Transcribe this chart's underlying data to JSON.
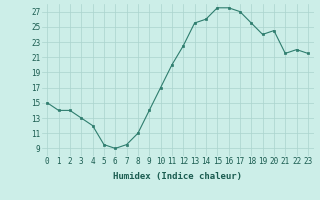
{
  "x": [
    0,
    1,
    2,
    3,
    4,
    5,
    6,
    7,
    8,
    9,
    10,
    11,
    12,
    13,
    14,
    15,
    16,
    17,
    18,
    19,
    20,
    21,
    22,
    23
  ],
  "y": [
    15,
    14,
    14,
    13,
    12,
    9.5,
    9,
    9.5,
    11,
    14,
    17,
    20,
    22.5,
    25.5,
    26,
    27.5,
    27.5,
    27,
    25.5,
    24,
    24.5,
    21.5,
    22,
    21.5
  ],
  "line_color": "#2e7d6e",
  "marker_color": "#2e7d6e",
  "bg_color": "#cceee8",
  "grid_color": "#aad4ce",
  "xlabel": "Humidex (Indice chaleur)",
  "ylim": [
    8,
    28
  ],
  "xlim": [
    -0.5,
    23.5
  ],
  "yticks": [
    9,
    11,
    13,
    15,
    17,
    19,
    21,
    23,
    25,
    27
  ],
  "xtick_labels": [
    "0",
    "1",
    "2",
    "3",
    "4",
    "5",
    "6",
    "7",
    "8",
    "9",
    "10",
    "11",
    "12",
    "13",
    "14",
    "15",
    "16",
    "17",
    "18",
    "19",
    "20",
    "21",
    "22",
    "23"
  ],
  "axis_fontsize": 6.5,
  "tick_fontsize": 5.5
}
